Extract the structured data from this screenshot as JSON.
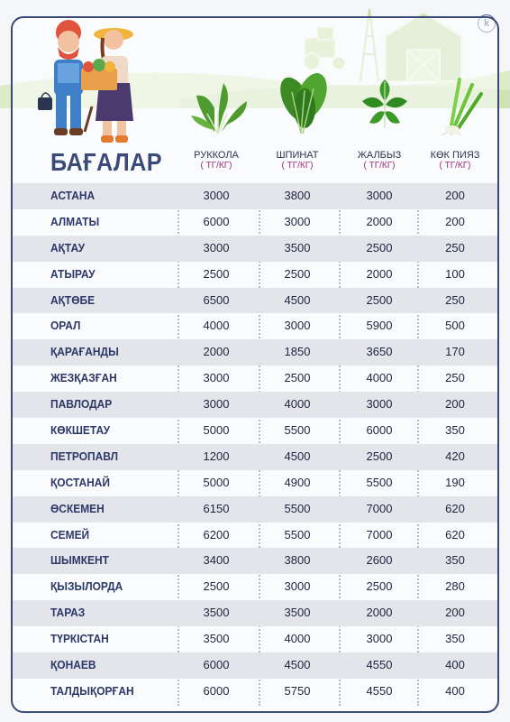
{
  "title": "БАҒАЛАР",
  "logo_letter": "k",
  "columns": [
    {
      "name": "РУККОЛА",
      "unit": "( ТГ/КГ)",
      "icon": "arugula-icon"
    },
    {
      "name": "ШПИНАТ",
      "unit": "( ТГ/КГ)",
      "icon": "spinach-icon"
    },
    {
      "name": "ЖАЛБЫЗ",
      "unit": "( ТГ/КГ)",
      "icon": "mint-icon"
    },
    {
      "name": "КӨК ПИЯЗ",
      "unit": "( ТГ/КГ)",
      "icon": "green-onion-icon"
    }
  ],
  "chart_data": {
    "type": "table",
    "title": "БАҒАЛАР",
    "headers": [
      "РУККОЛА",
      "ШПИНАТ",
      "ЖАЛБЫЗ",
      "КӨК ПИЯЗ"
    ],
    "unit": "( ТГ/КГ)",
    "rows": [
      {
        "city": "АСТАНА",
        "values": [
          "3000",
          "3800",
          "3000",
          "200"
        ]
      },
      {
        "city": "АЛМАТЫ",
        "values": [
          "6000",
          "3000",
          "2000",
          "200"
        ]
      },
      {
        "city": "АҚТАУ",
        "values": [
          "3000",
          "3500",
          "2500",
          "250"
        ]
      },
      {
        "city": "АТЫРАУ",
        "values": [
          "2500",
          "2500",
          "2000",
          "100"
        ]
      },
      {
        "city": "АҚТӨБЕ",
        "values": [
          "6500",
          "4500",
          "2500",
          "250"
        ]
      },
      {
        "city": "ОРАЛ",
        "values": [
          "4000",
          "3000",
          "5900",
          "500"
        ]
      },
      {
        "city": "ҚАРАҒАНДЫ",
        "values": [
          "2000",
          "1850",
          "3650",
          "170"
        ]
      },
      {
        "city": "ЖЕЗҚАЗҒАН",
        "values": [
          "3000",
          "2500",
          "4000",
          "250"
        ]
      },
      {
        "city": "ПАВЛОДАР",
        "values": [
          "3000",
          "4000",
          "3000",
          "200"
        ]
      },
      {
        "city": "КӨКШЕТАУ",
        "values": [
          "5000",
          "5500",
          "6000",
          "350"
        ]
      },
      {
        "city": "ПЕТРОПАВЛ",
        "values": [
          "1200",
          "4500",
          "2500",
          "420"
        ]
      },
      {
        "city": "ҚОСТАНАЙ",
        "values": [
          "5000",
          "4900",
          "5500",
          "190"
        ]
      },
      {
        "city": "ӨСКЕМЕН",
        "values": [
          "6150",
          "5500",
          "7000",
          "620"
        ]
      },
      {
        "city": "СЕМЕЙ",
        "values": [
          "6200",
          "5500",
          "7000",
          "620"
        ]
      },
      {
        "city": "ШЫМКЕНТ",
        "values": [
          "3400",
          "3800",
          "2600",
          "350"
        ]
      },
      {
        "city": "ҚЫЗЫЛОРДА",
        "values": [
          "2500",
          "3000",
          "2500",
          "280"
        ]
      },
      {
        "city": "ТАРАЗ",
        "values": [
          "3500",
          "3500",
          "2000",
          "200"
        ]
      },
      {
        "city": "ТҮРКІСТАН",
        "values": [
          "3500",
          "4000",
          "3000",
          "350"
        ]
      },
      {
        "city": "ҚОНАЕВ",
        "values": [
          "6000",
          "4500",
          "4550",
          "400"
        ]
      },
      {
        "city": "ТАЛДЫҚОРҒАН",
        "values": [
          "6000",
          "5750",
          "4550",
          "400"
        ]
      }
    ]
  },
  "colors": {
    "accent": "#3c4a7a",
    "unit": "#9b2d7a",
    "row_shade": "#e3e5ea",
    "farm_green": "#c9e2ad"
  }
}
